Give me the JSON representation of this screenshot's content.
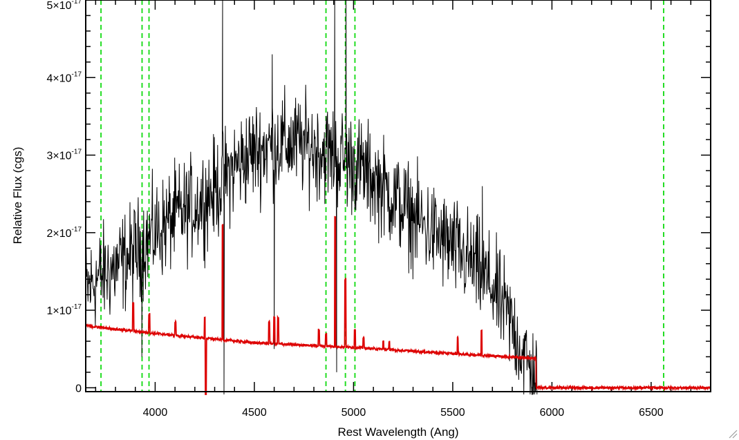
{
  "chart_data": {
    "type": "line",
    "xlabel": "Rest Wavelength (Ang)",
    "ylabel": "Relative Flux (cgs)",
    "xlim": [
      3650,
      6800
    ],
    "ylim": [
      -5e-19,
      5e-17
    ],
    "grid": false,
    "x_ticks": [
      4000,
      4500,
      5000,
      5500,
      6000,
      6500
    ],
    "x_tick_labels": [
      "4000",
      "4500",
      "5000",
      "5500",
      "6000",
      "6500"
    ],
    "y_ticks": [
      {
        "value": 0,
        "mantissa": "0",
        "exponent": ""
      },
      {
        "value": 1e-17,
        "mantissa": "1×10",
        "exponent": "-17"
      },
      {
        "value": 2e-17,
        "mantissa": "2×10",
        "exponent": "-17"
      },
      {
        "value": 3e-17,
        "mantissa": "3×10",
        "exponent": "-17"
      },
      {
        "value": 4e-17,
        "mantissa": "4×10",
        "exponent": "-17"
      },
      {
        "value": 5e-17,
        "mantissa": "5×10",
        "exponent": "-17"
      }
    ],
    "vlines": {
      "color": "#22dd22",
      "style": "dashed",
      "x": [
        3727,
        3934,
        3969,
        4861,
        4959,
        5007,
        6563
      ]
    },
    "series": [
      {
        "color": "#000000",
        "style": "noisy-spectrum",
        "spectrum_end": 5925,
        "noise_sigma": 3.2e-18,
        "x": [
          3650,
          3700,
          3800,
          3900,
          4000,
          4100,
          4200,
          4300,
          4400,
          4500,
          4600,
          4700,
          4800,
          4900,
          5000,
          5100,
          5200,
          5300,
          5400,
          5500,
          5600,
          5700,
          5800,
          5900
        ],
        "values": [
          1.25e-17,
          1.4e-17,
          1.55e-17,
          1.75e-17,
          2e-17,
          2.2e-17,
          2.35e-17,
          2.55e-17,
          2.85e-17,
          3.05e-17,
          3.15e-17,
          3.15e-17,
          3.1e-17,
          3e-17,
          2.9e-17,
          2.7e-17,
          2.45e-17,
          2.2e-17,
          2e-17,
          1.8e-17,
          1.6e-17,
          1.3e-17,
          8e-18,
          1.5e-18
        ],
        "features": [
          {
            "x": 4340,
            "value": 6e-17
          },
          {
            "x": 4347,
            "value": -1e-17
          },
          {
            "x": 4590,
            "value": 4.3e-17
          },
          {
            "x": 4600,
            "value": 5e-18
          },
          {
            "x": 4905,
            "value": 6e-17
          },
          {
            "x": 4915,
            "value": 2e-18
          },
          {
            "x": 4962,
            "value": 5.8e-17
          },
          {
            "x": 4970,
            "value": 2.5e-17
          },
          {
            "x": 5649,
            "value": 2.6e-17
          },
          {
            "x": 3933,
            "value": 4e-18
          }
        ]
      },
      {
        "color": "#dd0000",
        "style": "model",
        "x": [
          3650,
          4000,
          4500,
          5000,
          5500,
          5920,
          5921,
          6800
        ],
        "values": [
          8e-18,
          7e-18,
          5.8e-18,
          5.2e-18,
          4.4e-18,
          3.8e-18,
          0.0,
          0.0
        ],
        "lines": [
          {
            "x": 3889,
            "value": 1.1e-17
          },
          {
            "x": 3970,
            "value": 9.5e-18
          },
          {
            "x": 4102,
            "value": 8.5e-18
          },
          {
            "x": 4250,
            "value": 9e-18
          },
          {
            "x": 4340,
            "value": 2.1e-17
          },
          {
            "x": 4575,
            "value": 8.5e-18
          },
          {
            "x": 4600,
            "value": 9e-18
          },
          {
            "x": 4620,
            "value": 9e-18
          },
          {
            "x": 4825,
            "value": 7.5e-18
          },
          {
            "x": 4861,
            "value": 7e-18
          },
          {
            "x": 4907,
            "value": 2.2e-17
          },
          {
            "x": 4959,
            "value": 1.4e-17
          },
          {
            "x": 5007,
            "value": 7.5e-18
          },
          {
            "x": 5050,
            "value": 6.5e-18
          },
          {
            "x": 5150,
            "value": 6e-18
          },
          {
            "x": 5180,
            "value": 6e-18
          },
          {
            "x": 5525,
            "value": 6.5e-18
          },
          {
            "x": 5645,
            "value": 7.5e-18
          }
        ],
        "dips": [
          {
            "x": 4255,
            "value": -5e-18
          }
        ]
      }
    ]
  }
}
